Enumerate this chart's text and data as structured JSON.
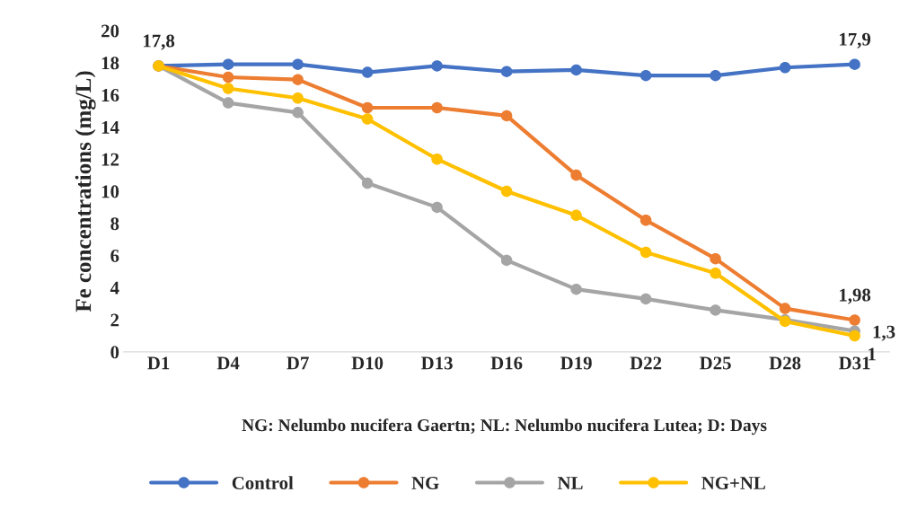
{
  "chart_data": {
    "type": "line",
    "ylabel": "Fe concentrations (mg/L)",
    "categories": [
      "D1",
      "D4",
      "D7",
      "D10",
      "D13",
      "D16",
      "D19",
      "D22",
      "D25",
      "D28",
      "D31"
    ],
    "series": [
      {
        "name": "Control",
        "color": "#4472c4",
        "values": [
          17.8,
          17.9,
          17.9,
          17.4,
          17.8,
          17.45,
          17.55,
          17.2,
          17.2,
          17.7,
          17.9
        ],
        "value_labels": [
          "17,8",
          null,
          null,
          null,
          null,
          null,
          null,
          null,
          null,
          null,
          "17,9"
        ]
      },
      {
        "name": "NG",
        "color": "#ed7d31",
        "values": [
          17.8,
          17.1,
          16.95,
          15.2,
          15.2,
          14.7,
          11.0,
          8.2,
          5.8,
          2.7,
          1.98
        ],
        "value_labels": [
          null,
          null,
          null,
          null,
          null,
          null,
          null,
          null,
          null,
          null,
          "1,98"
        ]
      },
      {
        "name": "NL",
        "color": "#a5a5a5",
        "values": [
          17.8,
          15.5,
          14.9,
          10.5,
          9.0,
          5.7,
          3.9,
          3.3,
          2.6,
          2.0,
          1.3
        ],
        "value_labels": [
          null,
          null,
          null,
          null,
          null,
          null,
          null,
          null,
          null,
          null,
          "1,3"
        ]
      },
      {
        "name": "NG+NL",
        "color": "#ffc000",
        "values": [
          17.8,
          16.4,
          15.8,
          14.5,
          12.0,
          10.0,
          8.5,
          6.2,
          4.9,
          1.9,
          1.0
        ],
        "value_labels": [
          null,
          null,
          null,
          null,
          null,
          null,
          null,
          null,
          null,
          null,
          "1"
        ]
      }
    ],
    "ylim": [
      0,
      20
    ],
    "yticks": [
      0,
      2,
      4,
      6,
      8,
      10,
      12,
      14,
      16,
      18,
      20
    ],
    "annotations": [
      "NG: Nelumbo nucifera Gaertn; NL: Nelumbo nucifera Lutea; D: Days"
    ],
    "legend": "bottom",
    "marker": "circle",
    "line_style": "solid",
    "grid": false
  }
}
